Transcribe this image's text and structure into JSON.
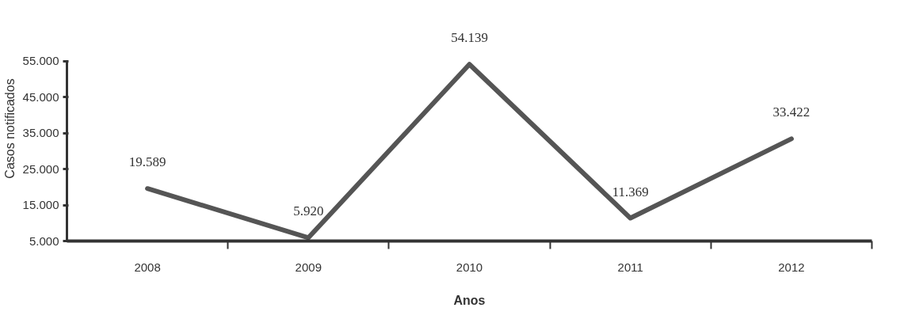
{
  "chart_data": {
    "type": "line",
    "xlabel": "Anos",
    "ylabel": "Casos notificados",
    "categories": [
      "2008",
      "2009",
      "2010",
      "2011",
      "2012"
    ],
    "series": [
      {
        "color": "#555555",
        "values": [
          19589,
          5920,
          54139,
          11369,
          33422
        ],
        "value_labels": [
          "19.589",
          "5.920",
          "54.139",
          "11.369",
          "33.422"
        ]
      }
    ],
    "ylim": [
      5000,
      55000
    ],
    "yticks": [
      {
        "value": 5000,
        "label": "5.000"
      },
      {
        "value": 15000,
        "label": "15.000"
      },
      {
        "value": 25000,
        "label": "25.000"
      },
      {
        "value": 35000,
        "label": "35.000"
      },
      {
        "value": 45000,
        "label": "45.000"
      },
      {
        "value": 55000,
        "label": "55.000"
      }
    ],
    "grid": false,
    "marker": "none",
    "line_style": "solid"
  }
}
